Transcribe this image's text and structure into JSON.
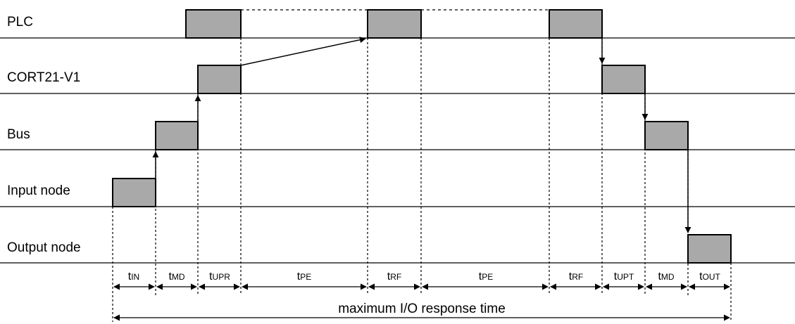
{
  "rows": [
    {
      "label": "PLC"
    },
    {
      "label": "CORT21-V1"
    },
    {
      "label": "Bus"
    },
    {
      "label": "Input node"
    },
    {
      "label": "Output node"
    }
  ],
  "segments": [
    {
      "main": "t",
      "sub": "IN"
    },
    {
      "main": "t",
      "sub": "MD"
    },
    {
      "main": "t",
      "sub": "UPR"
    },
    {
      "main": "t",
      "sub": "PE"
    },
    {
      "main": "t",
      "sub": "RF"
    },
    {
      "main": "t",
      "sub": "PE"
    },
    {
      "main": "t",
      "sub": "RF"
    },
    {
      "main": "t",
      "sub": "UPT"
    },
    {
      "main": "t",
      "sub": "MD"
    },
    {
      "main": "t",
      "sub": "OUT"
    }
  ],
  "total_label": "maximum I/O response time",
  "colors": {
    "block_fill": "#a9a9a9",
    "line": "#000000"
  }
}
